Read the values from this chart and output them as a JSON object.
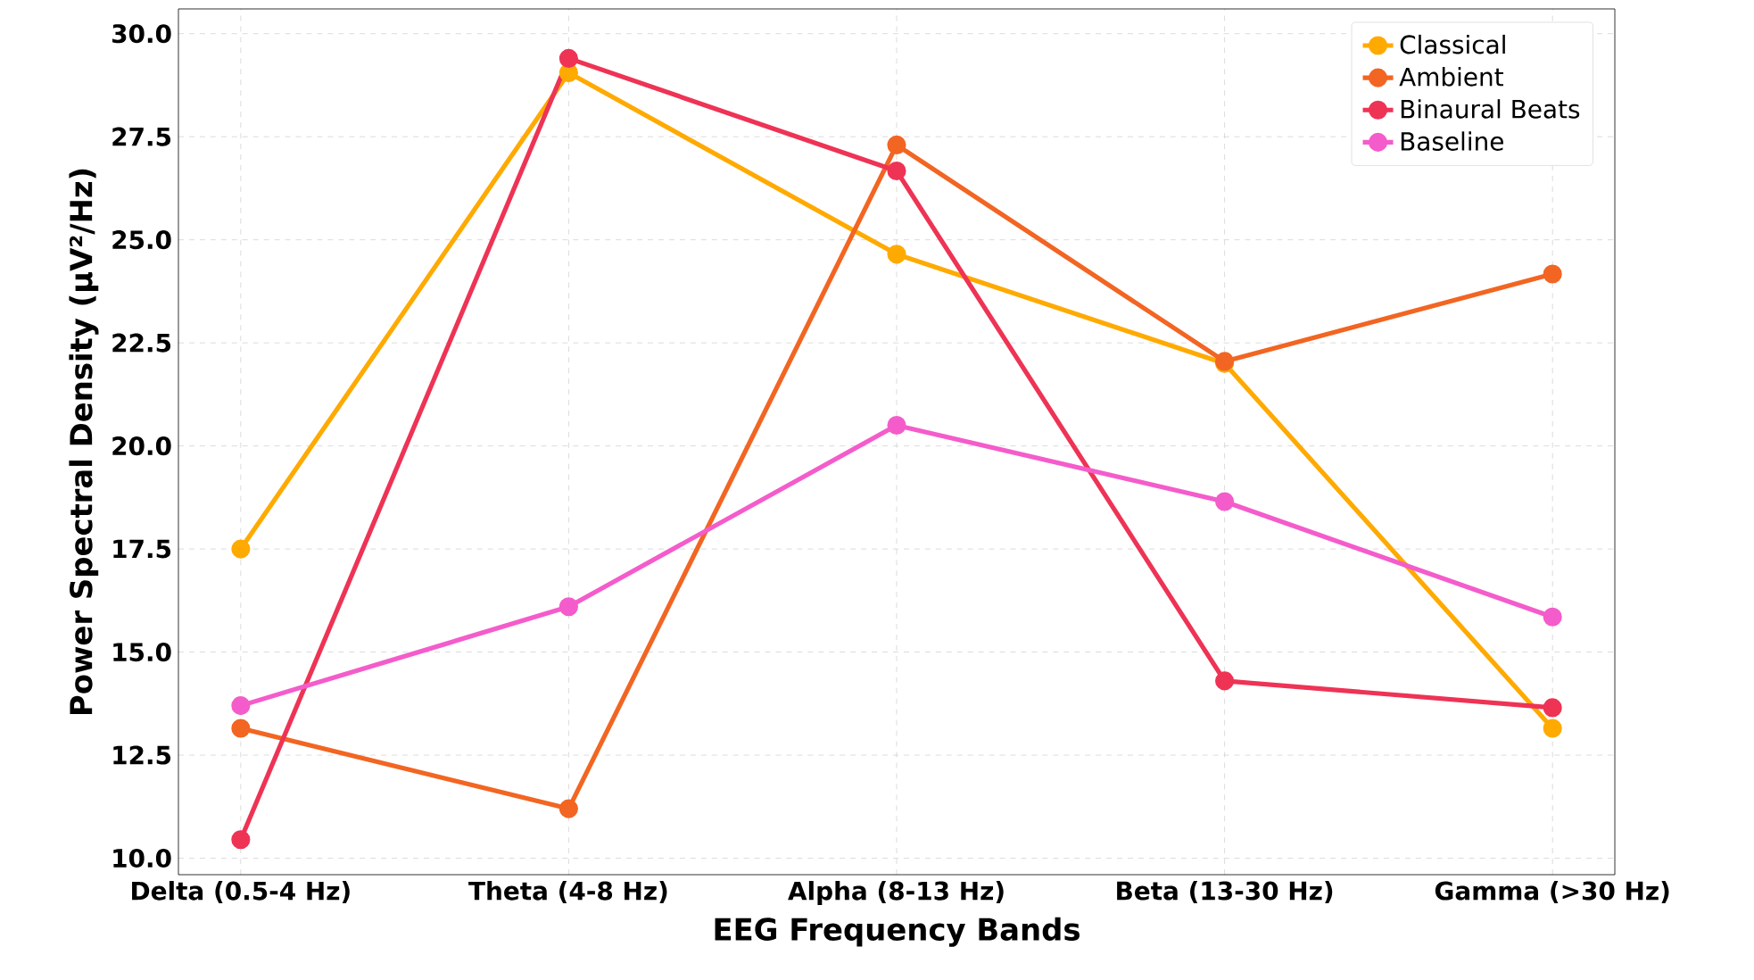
{
  "chart_data": {
    "type": "line",
    "xlabel": "EEG Frequency Bands",
    "ylabel": "Power Spectral Density (µV²/Hz)",
    "categories": [
      "Delta (0.5-4 Hz)",
      "Theta (4-8 Hz)",
      "Alpha (8-13 Hz)",
      "Beta (13-30 Hz)",
      "Gamma (>30 Hz)"
    ],
    "series": [
      {
        "name": "Classical",
        "color": "#ffaa00",
        "values": [
          17.5,
          29.05,
          24.65,
          22.0,
          13.15
        ]
      },
      {
        "name": "Ambient",
        "color": "#f26522",
        "values": [
          13.15,
          11.2,
          27.3,
          22.05,
          24.17
        ]
      },
      {
        "name": "Binaural Beats",
        "color": "#ee3355",
        "values": [
          10.45,
          29.4,
          26.67,
          14.3,
          13.65
        ]
      },
      {
        "name": "Baseline",
        "color": "#f45ccb",
        "values": [
          13.7,
          16.1,
          20.5,
          18.65,
          15.85
        ]
      }
    ],
    "ylim": [
      9.6,
      30.6
    ],
    "yticks": [
      {
        "value": 10,
        "label": "10.0"
      },
      {
        "value": 12.5,
        "label": "12.5"
      },
      {
        "value": 15,
        "label": "15.0"
      },
      {
        "value": 17.5,
        "label": "17.5"
      },
      {
        "value": 20,
        "label": "20.0"
      },
      {
        "value": 22.5,
        "label": "22.5"
      },
      {
        "value": 25,
        "label": "25.0"
      },
      {
        "value": 27.5,
        "label": "27.5"
      },
      {
        "value": 30,
        "label": "30.0"
      }
    ],
    "grid": true,
    "legend": "top right",
    "marker": "circle",
    "line_style": "solid"
  }
}
